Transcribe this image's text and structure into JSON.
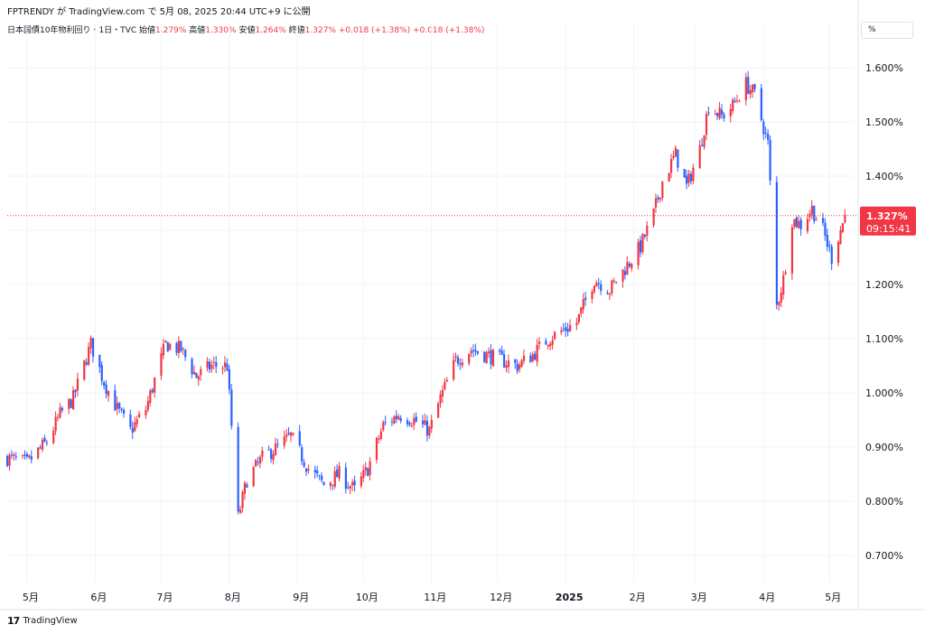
{
  "header": {
    "published_line": "FPTRENDY が TradingView.com で 5月 08, 2025 20:44 UTC+9 に公開"
  },
  "legend": {
    "symbol": "日本国債10年物利回り・1日・TVC",
    "open_label": "始値",
    "open_value": "1.279%",
    "high_label": "高値",
    "high_value": "1.330%",
    "low_label": "安値",
    "low_value": "1.264%",
    "close_label": "終値",
    "close_value": "1.327%",
    "change": "+0.018 (+1.38%)",
    "change2": "+0.018 (+1.38%)"
  },
  "unit_selector": "%",
  "footer": {
    "brand": "TradingView",
    "logo_icon": "tradingview-logo-icon"
  },
  "colors": {
    "up": "#f23645",
    "down": "#2962ff",
    "grid": "#f0f3fa",
    "price_tag": "#f23645"
  },
  "chart_data": {
    "type": "candlestick",
    "title": "日本国債10年物利回り・1日・TVC",
    "ylabel": "",
    "xlabel": "",
    "ylim": [
      0.65,
      1.65
    ],
    "grid": true,
    "y_ticks": [
      "1.600%",
      "1.500%",
      "1.400%",
      "1.300%",
      "1.200%",
      "1.100%",
      "1.000%",
      "0.900%",
      "0.800%",
      "0.700%"
    ],
    "y_tick_values": [
      1.6,
      1.5,
      1.4,
      1.3,
      1.2,
      1.1,
      1.0,
      0.9,
      0.8,
      0.7
    ],
    "x_ticks": [
      {
        "label": "5月",
        "date": "2024-05-01",
        "bold": false
      },
      {
        "label": "6月",
        "date": "2024-06-01",
        "bold": false
      },
      {
        "label": "7月",
        "date": "2024-07-01",
        "bold": false
      },
      {
        "label": "8月",
        "date": "2024-08-01",
        "bold": false
      },
      {
        "label": "9月",
        "date": "2024-09-01",
        "bold": false
      },
      {
        "label": "10月",
        "date": "2024-10-01",
        "bold": false
      },
      {
        "label": "11月",
        "date": "2024-11-01",
        "bold": false
      },
      {
        "label": "12月",
        "date": "2024-12-01",
        "bold": false
      },
      {
        "label": "2025",
        "date": "2025-01-01",
        "bold": true
      },
      {
        "label": "2月",
        "date": "2025-02-01",
        "bold": false
      },
      {
        "label": "3月",
        "date": "2025-03-01",
        "bold": false
      },
      {
        "label": "4月",
        "date": "2025-04-01",
        "bold": false
      },
      {
        "label": "5月",
        "date": "2025-05-01",
        "bold": false
      }
    ],
    "x_range": [
      "2024-04-22",
      "2025-05-12"
    ],
    "last_price": {
      "value": 1.327,
      "label": "1.327%",
      "countdown": "09:15:41"
    },
    "close_path": [
      [
        "2024-04-22",
        0.88
      ],
      [
        "2024-05-01",
        0.87
      ],
      [
        "2024-05-10",
        0.91
      ],
      [
        "2024-05-16",
        0.96
      ],
      [
        "2024-05-22",
        0.99
      ],
      [
        "2024-05-30",
        1.09
      ],
      [
        "2024-06-05",
        1.02
      ],
      [
        "2024-06-11",
        0.97
      ],
      [
        "2024-06-17",
        0.93
      ],
      [
        "2024-06-24",
        0.97
      ],
      [
        "2024-07-03",
        1.09
      ],
      [
        "2024-07-10",
        1.08
      ],
      [
        "2024-07-17",
        1.03
      ],
      [
        "2024-07-24",
        1.05
      ],
      [
        "2024-07-31",
        1.05
      ],
      [
        "2024-08-05",
        0.77
      ],
      [
        "2024-08-09",
        0.84
      ],
      [
        "2024-08-16",
        0.88
      ],
      [
        "2024-08-23",
        0.9
      ],
      [
        "2024-08-29",
        0.92
      ],
      [
        "2024-09-06",
        0.86
      ],
      [
        "2024-09-13",
        0.83
      ],
      [
        "2024-09-20",
        0.85
      ],
      [
        "2024-09-27",
        0.82
      ],
      [
        "2024-10-03",
        0.86
      ],
      [
        "2024-10-10",
        0.94
      ],
      [
        "2024-10-17",
        0.96
      ],
      [
        "2024-10-24",
        0.95
      ],
      [
        "2024-10-31",
        0.93
      ],
      [
        "2024-11-05",
        0.99
      ],
      [
        "2024-11-12",
        1.06
      ],
      [
        "2024-11-19",
        1.08
      ],
      [
        "2024-11-26",
        1.07
      ],
      [
        "2024-12-03",
        1.06
      ],
      [
        "2024-12-10",
        1.05
      ],
      [
        "2024-12-17",
        1.07
      ],
      [
        "2024-12-24",
        1.1
      ],
      [
        "2025-01-06",
        1.13
      ],
      [
        "2025-01-14",
        1.21
      ],
      [
        "2025-01-21",
        1.19
      ],
      [
        "2025-01-28",
        1.23
      ],
      [
        "2025-02-04",
        1.27
      ],
      [
        "2025-02-10",
        1.33
      ],
      [
        "2025-02-14",
        1.39
      ],
      [
        "2025-02-20",
        1.44
      ],
      [
        "2025-02-25",
        1.38
      ],
      [
        "2025-03-03",
        1.45
      ],
      [
        "2025-03-07",
        1.53
      ],
      [
        "2025-03-13",
        1.51
      ],
      [
        "2025-03-18",
        1.53
      ],
      [
        "2025-03-24",
        1.57
      ],
      [
        "2025-03-28",
        1.55
      ],
      [
        "2025-04-03",
        1.46
      ],
      [
        "2025-04-07",
        1.16
      ],
      [
        "2025-04-10",
        1.21
      ],
      [
        "2025-04-14",
        1.32
      ],
      [
        "2025-04-18",
        1.31
      ],
      [
        "2025-04-23",
        1.34
      ],
      [
        "2025-04-28",
        1.3
      ],
      [
        "2025-05-02",
        1.25
      ],
      [
        "2025-05-08",
        1.327
      ]
    ]
  }
}
